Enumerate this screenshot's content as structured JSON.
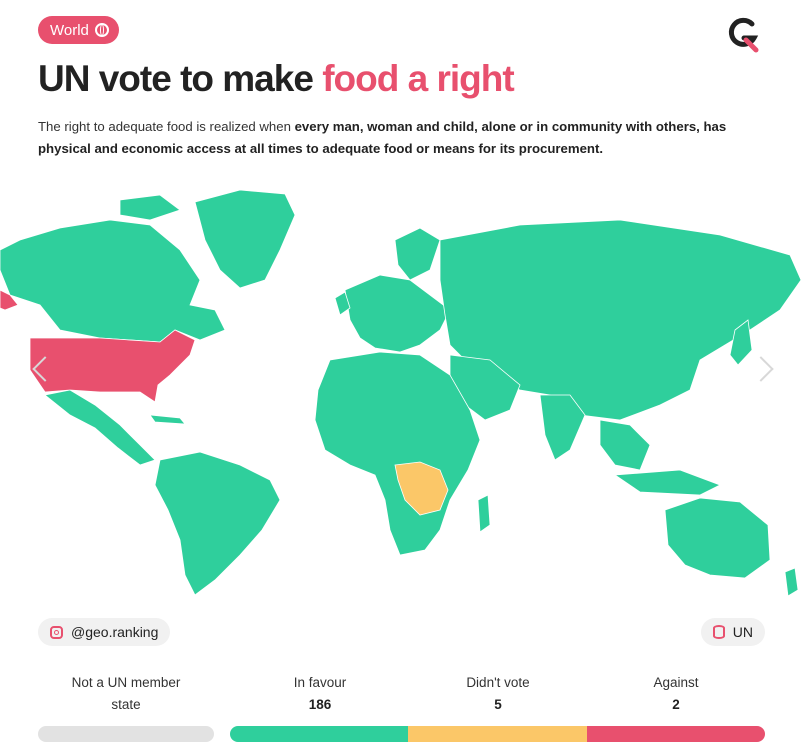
{
  "header": {
    "region_label": "World",
    "region_icon": "globe-icon",
    "logo_icon": "geo-ranking-logo-icon",
    "title_main": "UN vote to make ",
    "title_accent": "food a right",
    "subtitle_plain": "The right to adequate food is realized when ",
    "subtitle_bold": "every man, woman and child, alone or in community with others, has physical and economic access at all times to adequate food or means for its procurement."
  },
  "colors": {
    "accent": "#e8506e",
    "in_favour": "#2fcf9c",
    "didnt_vote": "#fbc768",
    "against": "#e8506e",
    "not_member": "#e2e2e2"
  },
  "map": {
    "highlighted": [
      {
        "region": "United States",
        "category": "Against"
      },
      {
        "region": "Democratic Republic of the Congo",
        "category": "Didn't vote"
      }
    ]
  },
  "footer": {
    "instagram_handle": "@geo.ranking",
    "instagram_icon": "instagram-icon",
    "source_label": "UN",
    "source_icon": "database-icon"
  },
  "legend": {
    "not_member_line1": "Not a UN member",
    "not_member_line2": "state",
    "in_favour_label": "In favour",
    "in_favour_count": "186",
    "didnt_vote_label": "Didn't vote",
    "didnt_vote_count": "5",
    "against_label": "Against",
    "against_count": "2"
  }
}
